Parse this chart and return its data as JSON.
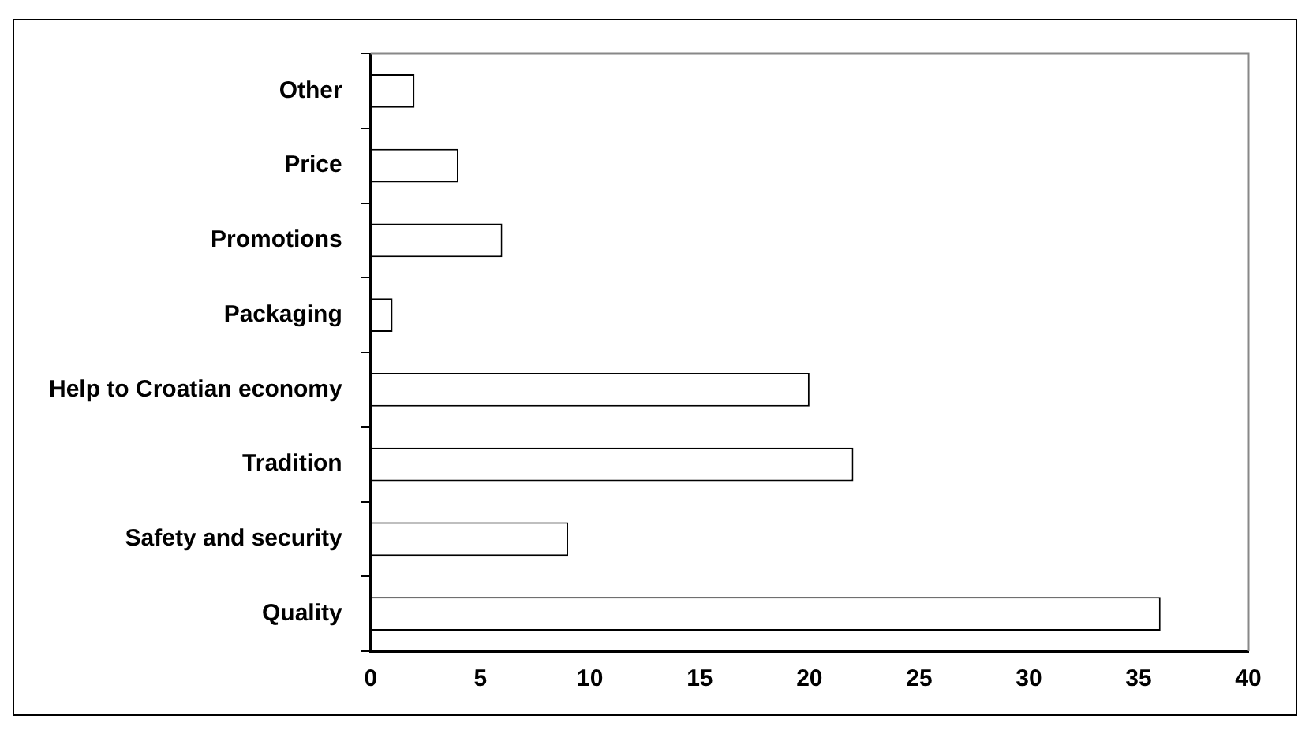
{
  "chart_data": {
    "type": "bar",
    "orientation": "horizontal",
    "categories": [
      "Other",
      "Price",
      "Promotions",
      "Packaging",
      "Help to Croatian economy",
      "Tradition",
      "Safety and security",
      "Quality"
    ],
    "values": [
      2,
      4,
      6,
      1,
      20,
      22,
      9,
      36
    ],
    "color": "#ffffff",
    "xlim": [
      0,
      40
    ],
    "xticks": [
      0,
      5,
      10,
      15,
      20,
      25,
      30,
      35,
      40
    ],
    "grid": false,
    "legend": false
  }
}
